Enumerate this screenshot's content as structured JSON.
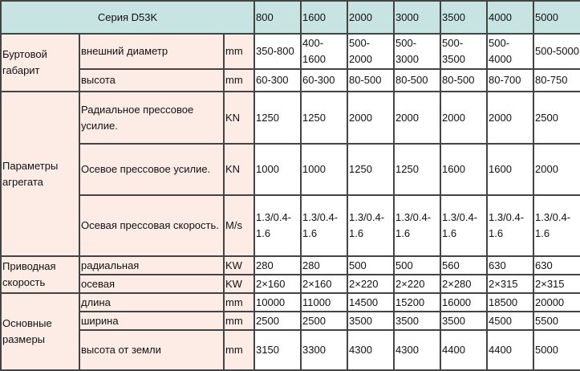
{
  "header": {
    "series": "Серия  D53K",
    "models": [
      "800",
      "1600",
      "2000",
      "3000",
      "3500",
      "4000",
      "5000"
    ]
  },
  "groups": [
    {
      "name": "Буртовой габарит",
      "rows": [
        {
          "param": "внешний диаметр",
          "unit": "mm",
          "values": [
            "350-800",
            "400-1600",
            "500-2000",
            "500-3000",
            "500-3500",
            "500-4000",
            "500-5000"
          ]
        },
        {
          "param": "высота",
          "unit": "mm",
          "values": [
            "60-300",
            "60-300",
            "80-500",
            "80-500",
            "80-500",
            "80-700",
            "80-750"
          ]
        }
      ]
    },
    {
      "name": "Параметры агрегата",
      "rows": [
        {
          "param": "Радиальное прессовое усилие.",
          "unit": "KN",
          "values": [
            "1250",
            "1250",
            "2000",
            "2000",
            "2000",
            "2000",
            "2500"
          ]
        },
        {
          "param": "Осевое прессовое усилие.",
          "unit": "KN",
          "values": [
            "1000",
            "1000",
            "1250",
            "1250",
            "1600",
            "1600",
            "2000"
          ]
        },
        {
          "param": "Осевая прессовая скорость.",
          "unit": "M/s",
          "values": [
            "1.3/0.4-1.6",
            "1.3/0.4-1.6",
            "1.3/0.4-1.6",
            "1.3/0.4-1.6",
            "1.3/0.4-1.6",
            "1.3/0.4-1.6",
            "1.3/0.4-1.6"
          ]
        }
      ]
    },
    {
      "name": "Приводная скорость",
      "rows": [
        {
          "param": "радиальная",
          "unit": "KW",
          "values": [
            "280",
            "280",
            "500",
            "500",
            "560",
            "630",
            "630"
          ]
        },
        {
          "param": "осевая",
          "unit": "KW",
          "values": [
            "2×160",
            "2×160",
            "2×220",
            "2×220",
            "2×280",
            "2×315",
            "2×315"
          ]
        }
      ]
    },
    {
      "name": "Основные размеры",
      "rows": [
        {
          "param": "длина",
          "unit": "mm",
          "values": [
            "10000",
            "11000",
            "14500",
            "15200",
            "16000",
            "18500",
            "20000"
          ]
        },
        {
          "param": "ширина",
          "unit": "mm",
          "values": [
            "2500",
            "2500",
            "3500",
            "3500",
            "3500",
            "4500",
            "5500"
          ]
        },
        {
          "param": "высота от земли",
          "unit": "mm",
          "values": [
            "3150",
            "3300",
            "4300",
            "4300",
            "4400",
            "4400",
            "5000"
          ]
        }
      ]
    }
  ]
}
